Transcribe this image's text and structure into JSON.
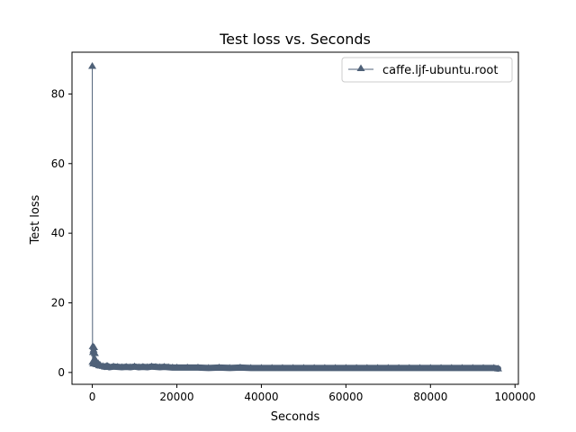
{
  "chart_data": {
    "type": "line",
    "title": "Test loss  vs. Seconds",
    "xlabel": "Seconds",
    "ylabel": "Test loss",
    "xlim": [
      -4800,
      100800
    ],
    "ylim": [
      -3.4,
      92
    ],
    "xticks": [
      0,
      20000,
      40000,
      60000,
      80000,
      100000
    ],
    "yticks": [
      0,
      20,
      40,
      60,
      80
    ],
    "grid": false,
    "legend_position": "top-right",
    "series": [
      {
        "name": "caffe.ljf-ubuntu.root",
        "color": "#4f6178",
        "marker": "triangle-up",
        "x": [
          0,
          60,
          120,
          180,
          240,
          300,
          360,
          420,
          480,
          540,
          600,
          700,
          800,
          900,
          1000,
          1200,
          1400,
          1600,
          1800,
          2000,
          2500,
          3000,
          3500,
          4000,
          5000,
          6000,
          7000,
          8000,
          9000,
          10000,
          11000,
          12000,
          13000,
          14000,
          15000,
          16000,
          17000,
          18000,
          19000,
          20000,
          22500,
          25000,
          27500,
          30000,
          32500,
          35000,
          37500,
          40000,
          42500,
          45000,
          47500,
          50000,
          52500,
          55000,
          57500,
          60000,
          62500,
          65000,
          67500,
          70000,
          72500,
          75000,
          77500,
          80000,
          82500,
          85000,
          87500,
          90000,
          92500,
          95000,
          96000
        ],
        "y": [
          88.0,
          3.0,
          7.5,
          5.8,
          2.5,
          6.5,
          3.2,
          7.2,
          2.6,
          3.8,
          5.5,
          2.8,
          3.5,
          2.4,
          3.0,
          2.3,
          2.6,
          2.0,
          2.2,
          1.9,
          1.8,
          1.6,
          1.9,
          1.5,
          1.7,
          1.6,
          1.5,
          1.6,
          1.5,
          1.7,
          1.5,
          1.6,
          1.5,
          1.7,
          1.6,
          1.5,
          1.6,
          1.5,
          1.4,
          1.4,
          1.4,
          1.4,
          1.3,
          1.4,
          1.3,
          1.4,
          1.3,
          1.3,
          1.3,
          1.3,
          1.3,
          1.3,
          1.3,
          1.3,
          1.3,
          1.3,
          1.3,
          1.3,
          1.3,
          1.3,
          1.3,
          1.3,
          1.3,
          1.3,
          1.3,
          1.3,
          1.3,
          1.3,
          1.3,
          1.3,
          1.1
        ]
      }
    ]
  }
}
